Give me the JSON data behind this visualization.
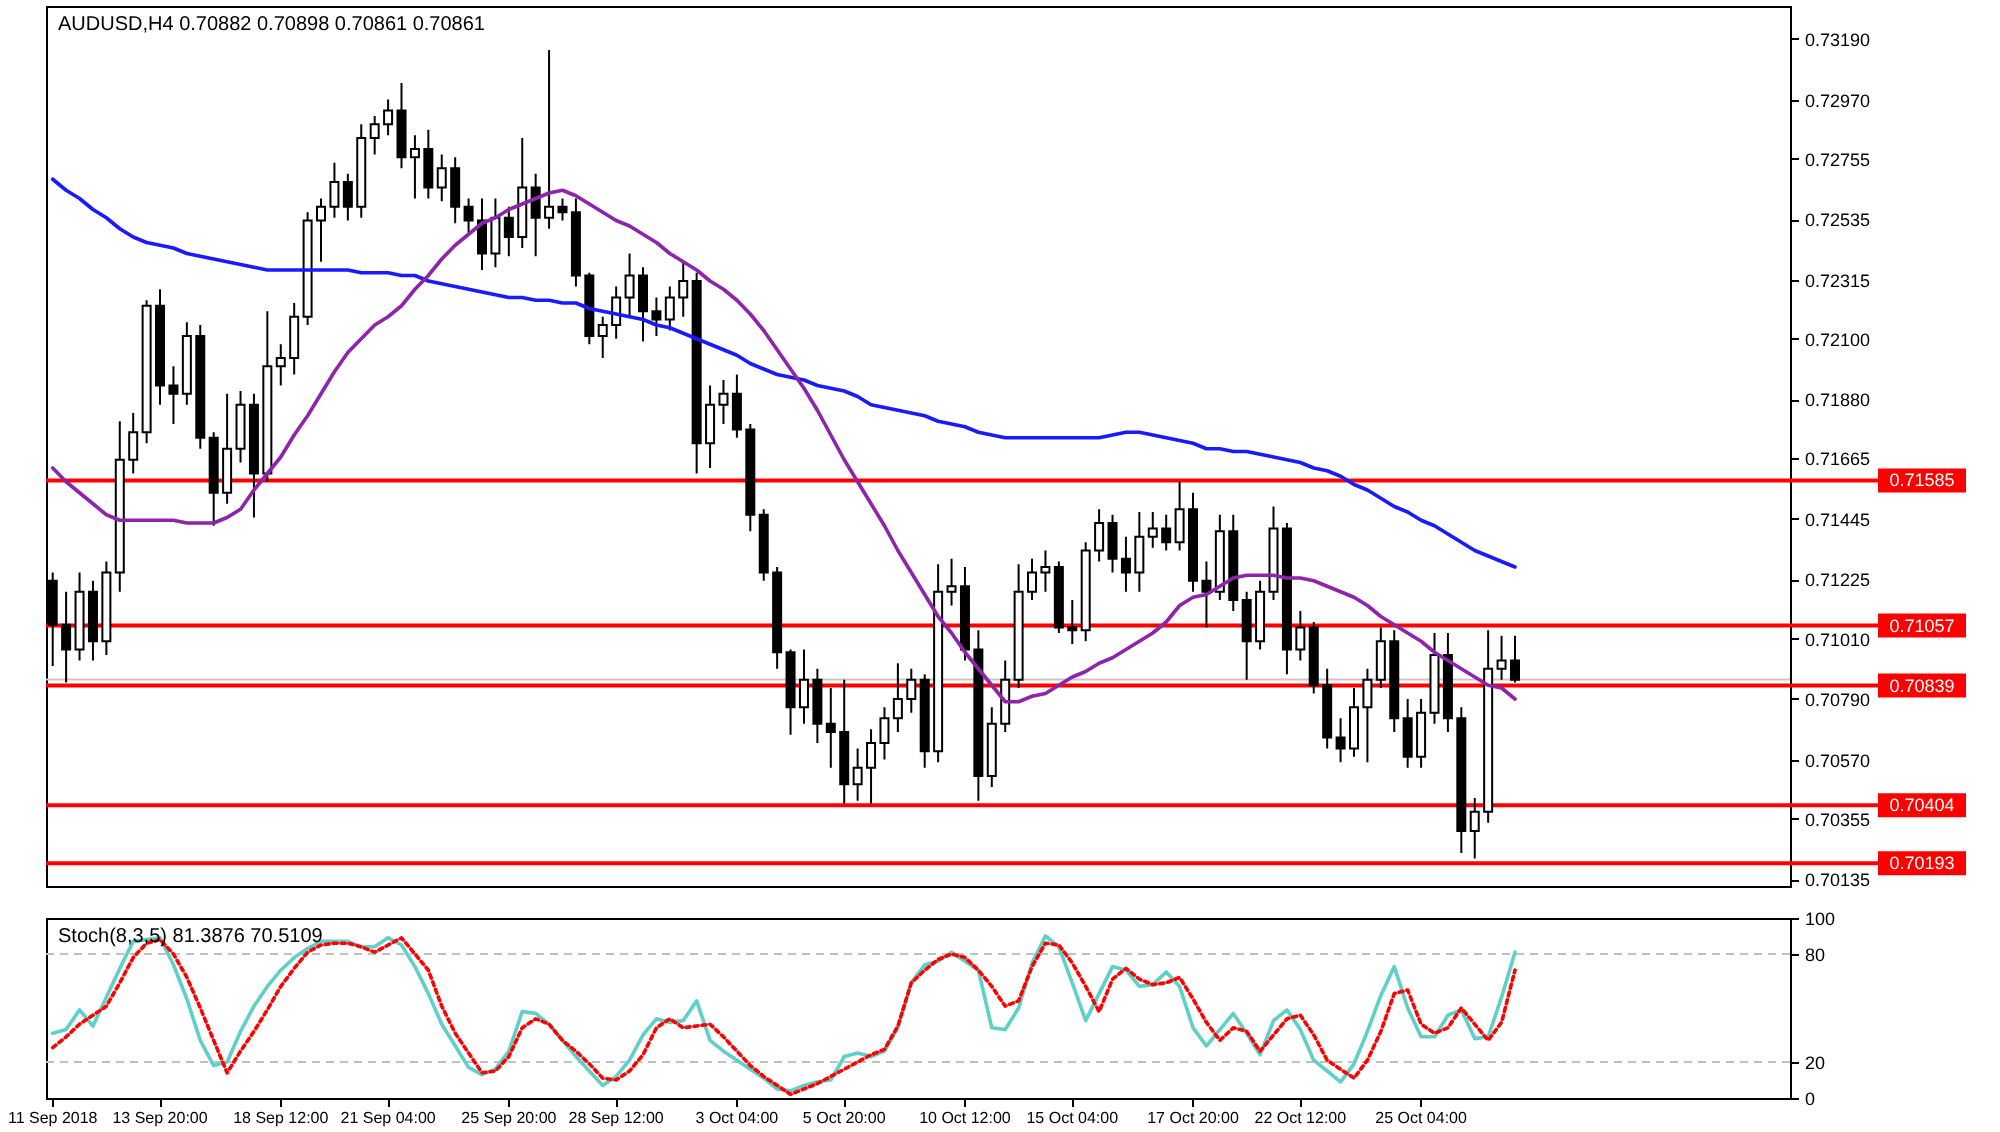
{
  "chart_data": [
    {
      "type": "candlestick",
      "title": "AUDUSD,H4  0.70882 0.70898 0.70861 0.70861",
      "color": "#000000",
      "tick_labels": "y",
      "categories": [
        null,
        null,
        null,
        null,
        null,
        null,
        null,
        null,
        null,
        null,
        null,
        null,
        null,
        null,
        null,
        null,
        null,
        null,
        null,
        null,
        null,
        null,
        null,
        null,
        null,
        null,
        null,
        null,
        null,
        null,
        null,
        null,
        null,
        null,
        null,
        null,
        null,
        null,
        null,
        null,
        null,
        null,
        null,
        null,
        null,
        null,
        null,
        null,
        null,
        null,
        null,
        null,
        null,
        null,
        null,
        null,
        null,
        null,
        null,
        null,
        null,
        null,
        null,
        null,
        null,
        null,
        null,
        null,
        null,
        null,
        null,
        null,
        null,
        null,
        null,
        null,
        null,
        null,
        null,
        null,
        null,
        null,
        null,
        null,
        null,
        null,
        null,
        null,
        null,
        null,
        null,
        null,
        null,
        null,
        null,
        null,
        null,
        null,
        null,
        null,
        null,
        null,
        null,
        null,
        null,
        null,
        null,
        null,
        null,
        null,
        null,
        null,
        null,
        null,
        null,
        null,
        null,
        null,
        null,
        null,
        null,
        null,
        null,
        null,
        null,
        null,
        null,
        null,
        null,
        null
      ],
      "ylim": [
        0.7011,
        0.7331
      ],
      "yticks": [
        {
          "value": 0.7319,
          "label": "0.73190"
        },
        {
          "value": 0.7297,
          "label": "0.72970"
        },
        0.72755,
        0.72535,
        0.72315,
        {
          "value": 0.721,
          "label": "0.72100"
        },
        {
          "value": 0.7188,
          "label": "0.71880"
        },
        0.71665,
        0.71445,
        0.71225,
        {
          "value": 0.7101,
          "label": "0.71010"
        },
        {
          "value": 0.7079,
          "label": "0.70790"
        },
        {
          "value": 0.7057,
          "label": "0.70570"
        },
        0.70355,
        0.70135
      ],
      "ohlc": [
        [
          0.7122,
          0.7125,
          0.7091,
          0.7106
        ],
        [
          0.7106,
          0.7118,
          0.7085,
          0.7097
        ],
        [
          0.7097,
          0.7125,
          0.7093,
          0.7118
        ],
        [
          0.7118,
          0.7122,
          0.7093,
          0.71
        ],
        [
          0.71,
          0.7129,
          0.7095,
          0.7125
        ],
        [
          0.7125,
          0.718,
          0.7118,
          0.7166
        ],
        [
          0.7166,
          0.7183,
          0.7161,
          0.7176
        ],
        [
          0.7176,
          0.7224,
          0.7172,
          0.7222
        ],
        [
          0.7222,
          0.7228,
          0.7186,
          0.7193
        ],
        [
          0.7193,
          0.72,
          0.7179,
          0.719
        ],
        [
          0.719,
          0.7216,
          0.7186,
          0.7211
        ],
        [
          0.7211,
          0.7215,
          0.717,
          0.7174
        ],
        [
          0.7174,
          0.7176,
          0.7142,
          0.7154
        ],
        [
          0.7154,
          0.719,
          0.715,
          0.717
        ],
        [
          0.717,
          0.7191,
          0.7165,
          0.7186
        ],
        [
          0.7186,
          0.719,
          0.7145,
          0.7161
        ],
        [
          0.7161,
          0.722,
          0.7158,
          0.72
        ],
        [
          0.72,
          0.7208,
          0.7193,
          0.7203
        ],
        [
          0.7203,
          0.7223,
          0.7197,
          0.7218
        ],
        [
          0.7218,
          0.7256,
          0.7215,
          0.7253
        ],
        [
          0.7253,
          0.7261,
          0.7238,
          0.7258
        ],
        [
          0.7258,
          0.7274,
          0.7254,
          0.7267
        ],
        [
          0.7267,
          0.727,
          0.7253,
          0.7258
        ],
        [
          0.7258,
          0.7288,
          0.7254,
          0.7283
        ],
        [
          0.7283,
          0.7291,
          0.7277,
          0.7288
        ],
        [
          0.7288,
          0.7297,
          0.7284,
          0.7293
        ],
        [
          0.7293,
          0.7303,
          0.7272,
          0.7276
        ],
        [
          0.7276,
          0.7284,
          0.7261,
          0.7279
        ],
        [
          0.7279,
          0.7286,
          0.7261,
          0.7265
        ],
        [
          0.7265,
          0.7277,
          0.726,
          0.7272
        ],
        [
          0.7272,
          0.7276,
          0.7252,
          0.7258
        ],
        [
          0.7258,
          0.7261,
          0.7248,
          0.7253
        ],
        [
          0.7253,
          0.7261,
          0.7235,
          0.7241
        ],
        [
          0.7241,
          0.7261,
          0.7236,
          0.7254
        ],
        [
          0.7254,
          0.7258,
          0.724,
          0.7247
        ],
        [
          0.7247,
          0.7283,
          0.7243,
          0.7265
        ],
        [
          0.7265,
          0.727,
          0.724,
          0.7254
        ],
        [
          0.7254,
          0.7315,
          0.725,
          0.7258
        ],
        [
          0.7258,
          0.7261,
          0.7253,
          0.7256
        ],
        [
          0.7256,
          0.7261,
          0.7229,
          0.7233
        ],
        [
          0.7233,
          0.7234,
          0.7208,
          0.7211
        ],
        [
          0.7211,
          0.7218,
          0.7203,
          0.7215
        ],
        [
          0.7215,
          0.7229,
          0.721,
          0.7225
        ],
        [
          0.7225,
          0.7241,
          0.7218,
          0.7233
        ],
        [
          0.7233,
          0.7236,
          0.7209,
          0.722
        ],
        [
          0.722,
          0.7225,
          0.7211,
          0.7217
        ],
        [
          0.7217,
          0.7229,
          0.7213,
          0.7225
        ],
        [
          0.7225,
          0.7238,
          0.7218,
          0.7231
        ],
        [
          0.7231,
          0.7234,
          0.7161,
          0.7172
        ],
        [
          0.7172,
          0.7193,
          0.7163,
          0.7186
        ],
        [
          0.7186,
          0.7195,
          0.7179,
          0.719
        ],
        [
          0.719,
          0.7197,
          0.7174,
          0.7177
        ],
        [
          0.7177,
          0.7179,
          0.714,
          0.7146
        ],
        [
          0.7146,
          0.7148,
          0.7122,
          0.7125
        ],
        [
          0.7125,
          0.7127,
          0.709,
          0.7096
        ],
        [
          0.7096,
          0.7097,
          0.7066,
          0.7076
        ],
        [
          0.7076,
          0.7097,
          0.707,
          0.7086
        ],
        [
          0.7086,
          0.709,
          0.7063,
          0.707
        ],
        [
          0.707,
          0.7083,
          0.7054,
          0.7067
        ],
        [
          0.7067,
          0.7086,
          0.7041,
          0.7048
        ],
        [
          0.7048,
          0.7061,
          0.7042,
          0.7054
        ],
        [
          0.7054,
          0.7068,
          0.7041,
          0.7063
        ],
        [
          0.7063,
          0.7076,
          0.7057,
          0.7072
        ],
        [
          0.7072,
          0.7092,
          0.7067,
          0.7079
        ],
        [
          0.7079,
          0.709,
          0.7074,
          0.7086
        ],
        [
          0.7086,
          0.7088,
          0.7054,
          0.706
        ],
        [
          0.706,
          0.7128,
          0.7056,
          0.7118
        ],
        [
          0.7118,
          0.713,
          0.7113,
          0.712
        ],
        [
          0.712,
          0.7127,
          0.7093,
          0.7097
        ],
        [
          0.7097,
          0.7104,
          0.7042,
          0.7051
        ],
        [
          0.7051,
          0.7076,
          0.7047,
          0.707
        ],
        [
          0.707,
          0.7093,
          0.7067,
          0.7086
        ],
        [
          0.7086,
          0.7128,
          0.7083,
          0.7118
        ],
        [
          0.7118,
          0.713,
          0.7115,
          0.7125
        ],
        [
          0.7125,
          0.7133,
          0.7118,
          0.7127
        ],
        [
          0.7127,
          0.7129,
          0.7103,
          0.7105
        ],
        [
          0.7105,
          0.7115,
          0.7099,
          0.7104
        ],
        [
          0.7104,
          0.7136,
          0.71,
          0.7133
        ],
        [
          0.7133,
          0.7148,
          0.7129,
          0.7143
        ],
        [
          0.7143,
          0.7146,
          0.7125,
          0.713
        ],
        [
          0.713,
          0.7138,
          0.7118,
          0.7125
        ],
        [
          0.7125,
          0.7147,
          0.7118,
          0.7138
        ],
        [
          0.7138,
          0.7147,
          0.7134,
          0.7141
        ],
        [
          0.7141,
          0.7146,
          0.7133,
          0.7136
        ],
        [
          0.7136,
          0.7158,
          0.7133,
          0.7148
        ],
        [
          0.7148,
          0.7154,
          0.7118,
          0.7122
        ],
        [
          0.7122,
          0.7129,
          0.7105,
          0.7118
        ],
        [
          0.7118,
          0.7146,
          0.7115,
          0.714
        ],
        [
          0.714,
          0.7146,
          0.7111,
          0.7115
        ],
        [
          0.7115,
          0.7118,
          0.7086,
          0.71
        ],
        [
          0.71,
          0.7122,
          0.7097,
          0.7118
        ],
        [
          0.7118,
          0.7149,
          0.7115,
          0.7141
        ],
        [
          0.7141,
          0.7143,
          0.7088,
          0.7097
        ],
        [
          0.7097,
          0.7111,
          0.7093,
          0.7105
        ],
        [
          0.7105,
          0.7107,
          0.7081,
          0.7084
        ],
        [
          0.7084,
          0.709,
          0.7061,
          0.7065
        ],
        [
          0.7065,
          0.7072,
          0.7056,
          0.7061
        ],
        [
          0.7061,
          0.7083,
          0.7058,
          0.7076
        ],
        [
          0.7076,
          0.709,
          0.7056,
          0.7086
        ],
        [
          0.7086,
          0.7105,
          0.7083,
          0.71
        ],
        [
          0.71,
          0.7104,
          0.7067,
          0.7072
        ],
        [
          0.7072,
          0.7079,
          0.7054,
          0.7058
        ],
        [
          0.7058,
          0.7079,
          0.7054,
          0.7074
        ],
        [
          0.7074,
          0.7103,
          0.707,
          0.7095
        ],
        [
          0.7095,
          0.7103,
          0.7067,
          0.7072
        ],
        [
          0.7072,
          0.7076,
          0.7023,
          0.7031
        ],
        [
          0.7031,
          0.7043,
          0.7021,
          0.7038
        ],
        [
          0.7038,
          0.7104,
          0.7034,
          0.709
        ],
        [
          0.709,
          0.7102,
          0.7086,
          0.7093
        ],
        [
          0.7093,
          0.7102,
          0.7085,
          0.7086
        ],
        null,
        null,
        null,
        null,
        null,
        null,
        null,
        null,
        null,
        null,
        null,
        null,
        null,
        null,
        null,
        null,
        null,
        null,
        null,
        null
      ],
      "colors": [
        "#000000",
        "#000000",
        "#ffffff",
        "#000000",
        "#ffffff",
        "#ffffff",
        "#ffffff",
        "#ffffff",
        "#000000",
        "#000000",
        "#ffffff",
        "#000000",
        "#000000",
        "#ffffff",
        "#ffffff",
        "#000000",
        "#ffffff",
        "#ffffff",
        "#ffffff",
        "#ffffff",
        "#ffffff",
        "#ffffff",
        "#000000",
        "#ffffff",
        "#ffffff",
        "#ffffff",
        "#000000",
        "#ffffff",
        "#000000",
        "#ffffff",
        "#000000",
        "#000000",
        "#000000",
        "#ffffff",
        "#000000",
        "#ffffff",
        "#000000",
        "#ffffff",
        "#000000",
        "#000000",
        "#000000",
        "#ffffff",
        "#ffffff",
        "#ffffff",
        "#000000",
        "#000000",
        "#ffffff",
        "#ffffff",
        "#000000",
        "#ffffff",
        "#ffffff",
        "#000000",
        "#000000",
        "#000000",
        "#000000",
        "#000000",
        "#ffffff",
        "#000000",
        "#000000",
        "#000000",
        "#ffffff",
        "#ffffff",
        "#ffffff",
        "#ffffff",
        "#ffffff",
        "#000000",
        "#ffffff",
        "#ffffff",
        "#000000",
        "#000000",
        "#ffffff",
        "#ffffff",
        "#ffffff",
        "#ffffff",
        "#ffffff",
        "#000000",
        "#000000",
        "#ffffff",
        "#ffffff",
        "#000000",
        "#000000",
        "#ffffff",
        "#ffffff",
        "#000000",
        "#ffffff",
        "#000000",
        "#000000",
        "#ffffff",
        "#000000",
        "#000000",
        "#ffffff",
        "#ffffff",
        "#000000",
        "#ffffff",
        "#000000",
        "#000000",
        "#000000",
        "#ffffff",
        "#ffffff",
        "#ffffff",
        "#000000",
        "#000000",
        "#ffffff",
        "#ffffff",
        "#000000",
        "#000000",
        "#ffffff",
        "#ffffff",
        "#ffffff",
        "#000000",
        null,
        null,
        null,
        null,
        null,
        null,
        null,
        null,
        null,
        null,
        null,
        null,
        null,
        null,
        null,
        null,
        null,
        null,
        null,
        null
      ],
      "series": [
        {
          "type": "line",
          "color": "#1a1aff",
          "values": [
            0.7268,
            0.7264,
            0.7261,
            0.7257,
            0.7254,
            0.725,
            0.7247,
            0.7245,
            0.7244,
            0.7243,
            0.7241,
            0.724,
            0.7239,
            0.7238,
            0.7237,
            0.7236,
            0.7235,
            0.7235,
            0.7235,
            0.7235,
            0.7235,
            0.7235,
            0.7235,
            0.7234,
            0.7234,
            0.7234,
            0.7233,
            0.7233,
            0.7231,
            0.723,
            0.7229,
            0.7228,
            0.7227,
            0.7226,
            0.7225,
            0.7225,
            0.7224,
            0.7224,
            0.7223,
            0.7223,
            0.7221,
            0.722,
            0.7219,
            0.7218,
            0.7217,
            0.7215,
            0.7214,
            0.7212,
            0.721,
            0.7208,
            0.7206,
            0.7204,
            0.7201,
            0.7199,
            0.7197,
            0.7196,
            0.7195,
            0.7193,
            0.7192,
            0.7191,
            0.7189,
            0.7186,
            0.7185,
            0.7184,
            0.7183,
            0.7182,
            0.718,
            0.7179,
            0.7178,
            0.7176,
            0.7175,
            0.7174,
            0.7174,
            0.7174,
            0.7174,
            0.7174,
            0.7174,
            0.7174,
            0.7174,
            0.7175,
            0.7176,
            0.7176,
            0.7175,
            0.7174,
            0.7173,
            0.7172,
            0.717,
            0.717,
            0.7169,
            0.7169,
            0.7168,
            0.7167,
            0.7166,
            0.7165,
            0.7163,
            0.7162,
            0.716,
            0.7157,
            0.7155,
            0.7152,
            0.7149,
            0.7147,
            0.7144,
            0.7142,
            0.7139,
            0.7136,
            0.7133,
            0.7131,
            0.7129,
            0.7127,
            null,
            null,
            null,
            null,
            null,
            null,
            null,
            null,
            null,
            null,
            null,
            null,
            null,
            null,
            null,
            null,
            null,
            null,
            null,
            null
          ]
        },
        {
          "type": "line",
          "color": "#8e24aa",
          "values": [
            0.7163,
            0.7158,
            0.7154,
            0.715,
            0.7146,
            0.7144,
            0.7144,
            0.7144,
            0.7144,
            0.7144,
            0.7143,
            0.7143,
            0.7143,
            0.7145,
            0.7148,
            0.7155,
            0.7161,
            0.7167,
            0.7175,
            0.7182,
            0.719,
            0.7198,
            0.7205,
            0.721,
            0.7215,
            0.7218,
            0.7222,
            0.7228,
            0.7233,
            0.7239,
            0.7244,
            0.7248,
            0.7252,
            0.7254,
            0.7257,
            0.7259,
            0.7261,
            0.7263,
            0.7264,
            0.7262,
            0.7259,
            0.7256,
            0.7253,
            0.7251,
            0.7248,
            0.7245,
            0.7241,
            0.7238,
            0.7235,
            0.7231,
            0.7228,
            0.7224,
            0.7219,
            0.7213,
            0.7206,
            0.7199,
            0.7192,
            0.7184,
            0.7175,
            0.7166,
            0.7158,
            0.715,
            0.7142,
            0.7133,
            0.7125,
            0.7117,
            0.7109,
            0.7103,
            0.7096,
            0.709,
            0.7084,
            0.7078,
            0.7078,
            0.708,
            0.7081,
            0.7084,
            0.7087,
            0.7089,
            0.7092,
            0.7094,
            0.7097,
            0.71,
            0.7103,
            0.7107,
            0.7113,
            0.7116,
            0.7117,
            0.712,
            0.7123,
            0.7124,
            0.7124,
            0.7124,
            0.7123,
            0.7123,
            0.7122,
            0.712,
            0.7118,
            0.7116,
            0.7113,
            0.7109,
            0.7106,
            0.7103,
            0.71,
            0.7096,
            0.7093,
            0.709,
            0.7087,
            0.7084,
            0.7083,
            0.7079,
            null,
            null,
            null,
            null,
            null,
            null,
            null,
            null,
            null,
            null,
            null,
            null,
            null,
            null,
            null,
            null,
            null,
            null,
            null,
            null
          ]
        }
      ],
      "ref_lines": [
        {
          "axis": "y",
          "value": 0.70861,
          "color": "#c8c8c8"
        },
        {
          "axis": "y",
          "value": 0.71585,
          "label": "0.71585",
          "color": "#ff0000"
        },
        {
          "axis": "y",
          "value": 0.71057,
          "label": "0.71057",
          "color": "#ff0000"
        },
        {
          "axis": "y",
          "value": 0.70839,
          "label": "0.70839",
          "color": "#ff0000"
        },
        {
          "axis": "y",
          "value": 0.70404,
          "label": "0.70404",
          "color": "#ff0000"
        },
        {
          "axis": "y",
          "value": 0.70193,
          "label": "0.70193",
          "color": "#ff0000"
        }
      ]
    },
    {
      "type": "line",
      "title": "Stoch(8,3,5) 81.3876 70.5109",
      "ylim": [
        0,
        100
      ],
      "yticks": [
        0,
        20,
        80,
        100
      ],
      "categories": [
        "11 Sep 2018",
        null,
        null,
        null,
        null,
        null,
        null,
        null,
        "13 Sep 20:00",
        null,
        null,
        null,
        null,
        null,
        null,
        null,
        null,
        "18 Sep 12:00",
        null,
        null,
        null,
        null,
        null,
        null,
        null,
        "21 Sep 04:00",
        null,
        null,
        null,
        null,
        null,
        null,
        null,
        null,
        "25 Sep 20:00",
        null,
        null,
        null,
        null,
        null,
        null,
        null,
        "28 Sep 12:00",
        null,
        null,
        null,
        null,
        null,
        null,
        null,
        null,
        "3 Oct 04:00",
        null,
        null,
        null,
        null,
        null,
        null,
        null,
        "5 Oct 20:00",
        null,
        null,
        null,
        null,
        null,
        null,
        null,
        null,
        "10 Oct 12:00",
        null,
        null,
        null,
        null,
        null,
        null,
        null,
        "15 Oct 04:00",
        null,
        null,
        null,
        null,
        null,
        null,
        null,
        null,
        "17 Oct 20:00",
        null,
        null,
        null,
        null,
        null,
        null,
        null,
        "22 Oct 12:00",
        null,
        null,
        null,
        null,
        null,
        null,
        null,
        null,
        "25 Oct 04:00",
        null,
        null,
        null,
        null,
        null,
        null,
        null,
        null,
        null,
        null,
        null,
        null,
        null,
        null,
        null,
        null,
        null,
        null,
        null,
        null,
        null,
        null,
        null,
        null,
        null,
        null,
        null
      ],
      "ref_lines": [
        {
          "axis": "y",
          "value": 80,
          "color": "#c0c0c0",
          "line_style": "dashed"
        },
        {
          "axis": "y",
          "value": 20,
          "color": "#c0c0c0",
          "line_style": "dashed"
        }
      ],
      "series": [
        {
          "type": "line",
          "color": "#5fd0c8",
          "line_style": "solid",
          "values": [
            36,
            38,
            49,
            40,
            56,
            72,
            87,
            88,
            89,
            74,
            55,
            32,
            18,
            20,
            37,
            51,
            62,
            71,
            78,
            83,
            87,
            87,
            87,
            84,
            84,
            89,
            85,
            73,
            58,
            41,
            29,
            17,
            13,
            16,
            26,
            48,
            47,
            41,
            32,
            23,
            15,
            7,
            12,
            21,
            35,
            44,
            42,
            43,
            54,
            32,
            26,
            21,
            16,
            11,
            5,
            4,
            7,
            9,
            10,
            23,
            25,
            23,
            26,
            39,
            64,
            74,
            76,
            81,
            76,
            71,
            39,
            38,
            50,
            75,
            90,
            84,
            64,
            43,
            58,
            73,
            71,
            62,
            63,
            70,
            62,
            39,
            29,
            38,
            47,
            36,
            24,
            43,
            49,
            38,
            21,
            15,
            9,
            19,
            37,
            57,
            73,
            50,
            34,
            34,
            46,
            49,
            33,
            34,
            56,
            81,
            null,
            null,
            null,
            null,
            null,
            null,
            null,
            null,
            null,
            null,
            null,
            null,
            null,
            null,
            null,
            null,
            null,
            null,
            null,
            null
          ]
        },
        {
          "type": "line",
          "color": "#ff0000",
          "line_style": "dotted",
          "values": [
            28,
            34,
            41,
            46,
            51,
            64,
            78,
            86,
            88,
            80,
            67,
            50,
            32,
            14,
            26,
            37,
            49,
            62,
            72,
            81,
            85,
            86,
            86,
            84,
            81,
            85,
            89,
            80,
            71,
            51,
            36,
            25,
            14,
            15,
            23,
            39,
            44,
            41,
            32,
            26,
            19,
            11,
            10,
            15,
            24,
            39,
            44,
            39,
            40,
            41,
            34,
            26,
            18,
            12,
            7,
            2,
            5,
            8,
            12,
            16,
            20,
            24,
            27,
            40,
            64,
            71,
            77,
            80,
            78,
            71,
            62,
            51,
            54,
            73,
            86,
            85,
            75,
            62,
            48,
            66,
            72,
            66,
            63,
            64,
            67,
            55,
            42,
            32,
            39,
            37,
            26,
            35,
            44,
            46,
            35,
            21,
            16,
            11,
            21,
            37,
            58,
            60,
            41,
            36,
            39,
            50,
            41,
            32,
            42,
            71,
            null,
            null,
            null,
            null,
            null,
            null,
            null,
            null,
            null,
            null,
            null,
            null,
            null,
            null,
            null,
            null,
            null,
            null,
            null,
            null
          ]
        }
      ]
    }
  ]
}
